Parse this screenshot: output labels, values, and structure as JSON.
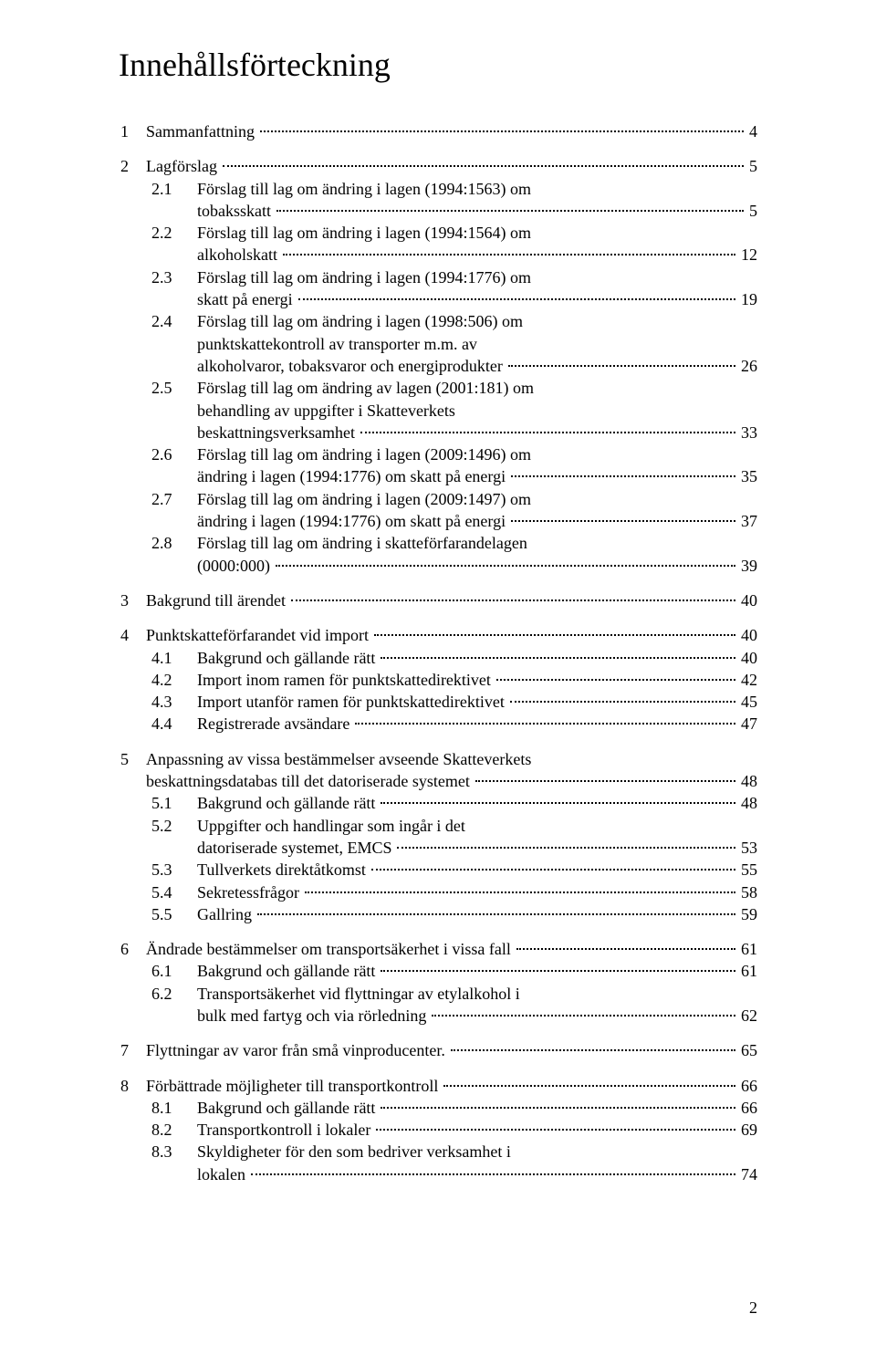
{
  "title": "Innehållsförteckning",
  "page_number": "2",
  "toc": [
    {
      "type": "top",
      "num": "1",
      "label": "Sammanfattning",
      "page": "4",
      "gap_before": false
    },
    {
      "type": "top",
      "num": "2",
      "label": "Lagförslag",
      "page": "5",
      "gap_before": true
    },
    {
      "type": "sub",
      "num": "2.1",
      "lines": [
        "Förslag till lag om ändring i lagen (1994:1563) om",
        "tobaksskatt"
      ],
      "page": "5"
    },
    {
      "type": "sub",
      "num": "2.2",
      "lines": [
        "Förslag till lag om ändring i lagen (1994:1564) om",
        "alkoholskatt"
      ],
      "page": "12"
    },
    {
      "type": "sub",
      "num": "2.3",
      "lines": [
        "Förslag till lag om ändring i lagen (1994:1776) om",
        "skatt på energi"
      ],
      "page": "19"
    },
    {
      "type": "sub",
      "num": "2.4",
      "lines": [
        "Förslag till lag om ändring i lagen (1998:506) om",
        "punktskattekontroll av transporter m.m. av",
        "alkoholvaror, tobaksvaror och energiprodukter"
      ],
      "page": "26"
    },
    {
      "type": "sub",
      "num": "2.5",
      "lines": [
        "Förslag till lag om ändring av lagen (2001:181) om",
        "behandling av uppgifter i Skatteverkets",
        "beskattningsverksamhet"
      ],
      "page": "33"
    },
    {
      "type": "sub",
      "num": "2.6",
      "lines": [
        "Förslag till lag om ändring i lagen (2009:1496) om",
        "ändring i lagen (1994:1776) om skatt på energi"
      ],
      "page": "35"
    },
    {
      "type": "sub",
      "num": "2.7",
      "lines": [
        "Förslag till lag om ändring i lagen (2009:1497) om",
        "ändring i lagen (1994:1776) om skatt på energi"
      ],
      "page": "37"
    },
    {
      "type": "sub",
      "num": "2.8",
      "lines": [
        "Förslag till lag om ändring i skatteförfarandelagen",
        "(0000:000)"
      ],
      "page": "39"
    },
    {
      "type": "top",
      "num": "3",
      "label": "Bakgrund till ärendet",
      "page": "40",
      "gap_before": true
    },
    {
      "type": "top",
      "num": "4",
      "label": "Punktskatteförfarandet vid import",
      "page": "40",
      "gap_before": true
    },
    {
      "type": "sub",
      "num": "4.1",
      "lines": [
        "Bakgrund och gällande rätt"
      ],
      "page": "40"
    },
    {
      "type": "sub",
      "num": "4.2",
      "lines": [
        "Import inom ramen för punktskattedirektivet"
      ],
      "page": "42"
    },
    {
      "type": "sub",
      "num": "4.3",
      "lines": [
        "Import utanför ramen för punktskattedirektivet"
      ],
      "page": "45"
    },
    {
      "type": "sub",
      "num": "4.4",
      "lines": [
        "Registrerade avsändare"
      ],
      "page": "47"
    },
    {
      "type": "top_multi",
      "num": "5",
      "lines": [
        "Anpassning av vissa bestämmelser avseende Skatteverkets",
        "beskattningsdatabas till det datoriserade systemet"
      ],
      "page": "48",
      "gap_before": true
    },
    {
      "type": "sub",
      "num": "5.1",
      "lines": [
        "Bakgrund och gällande rätt"
      ],
      "page": "48"
    },
    {
      "type": "sub",
      "num": "5.2",
      "lines": [
        "Uppgifter och handlingar som ingår i det",
        "datoriserade systemet, EMCS"
      ],
      "page": "53"
    },
    {
      "type": "sub",
      "num": "5.3",
      "lines": [
        "Tullverkets direktåtkomst"
      ],
      "page": "55"
    },
    {
      "type": "sub",
      "num": "5.4",
      "lines": [
        "Sekretessfrågor"
      ],
      "page": "58"
    },
    {
      "type": "sub",
      "num": "5.5",
      "lines": [
        "Gallring"
      ],
      "page": "59"
    },
    {
      "type": "top",
      "num": "6",
      "label": "Ändrade bestämmelser om transportsäkerhet i vissa fall",
      "page": "61",
      "gap_before": true
    },
    {
      "type": "sub",
      "num": "6.1",
      "lines": [
        "Bakgrund och gällande rätt"
      ],
      "page": "61"
    },
    {
      "type": "sub",
      "num": "6.2",
      "lines": [
        "Transportsäkerhet vid flyttningar av etylalkohol i",
        "bulk med fartyg och via rörledning"
      ],
      "page": "62"
    },
    {
      "type": "top",
      "num": "7",
      "label": "Flyttningar av varor från små vinproducenter.",
      "page": "65",
      "gap_before": true
    },
    {
      "type": "top",
      "num": "8",
      "label": "Förbättrade möjligheter till transportkontroll",
      "page": "66",
      "gap_before": true
    },
    {
      "type": "sub",
      "num": "8.1",
      "lines": [
        "Bakgrund och gällande rätt"
      ],
      "page": "66"
    },
    {
      "type": "sub",
      "num": "8.2",
      "lines": [
        "Transportkontroll i lokaler"
      ],
      "page": "69"
    },
    {
      "type": "sub",
      "num": "8.3",
      "lines": [
        "Skyldigheter för den som bedriver verksamhet i",
        "lokalen"
      ],
      "page": "74"
    }
  ]
}
